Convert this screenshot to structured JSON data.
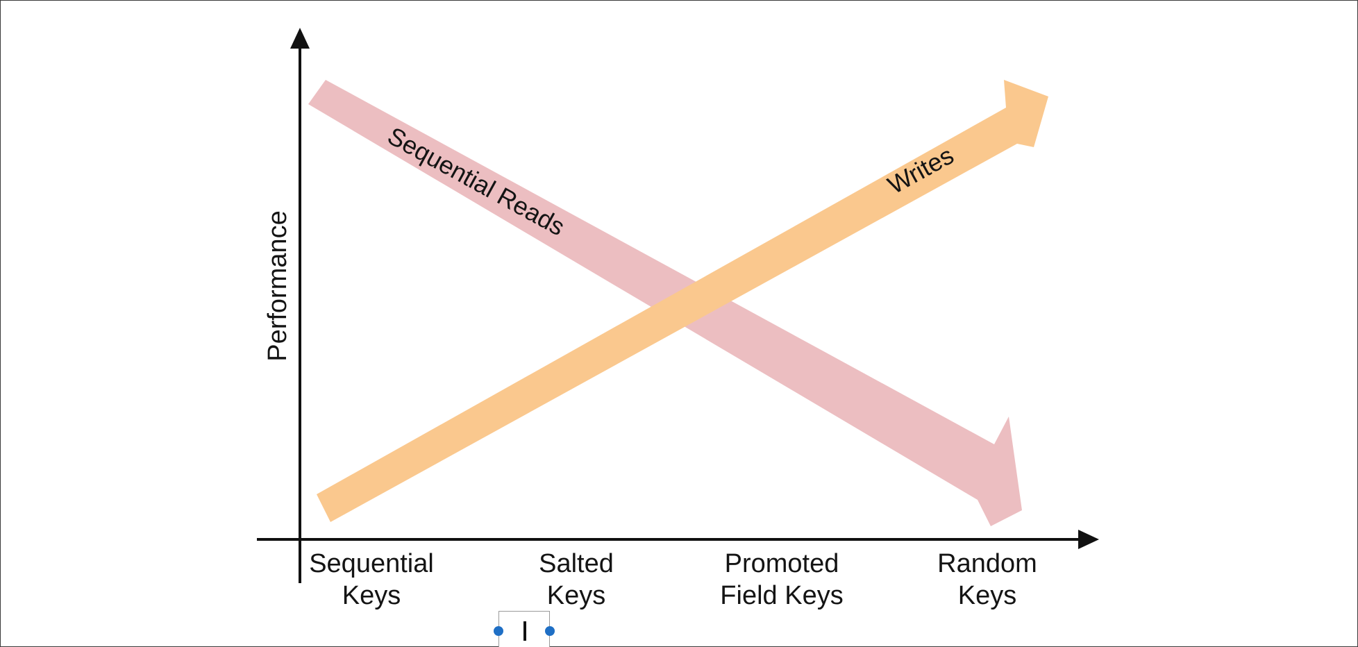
{
  "diagram": {
    "y_axis_label": "Performance",
    "x_ticks": [
      {
        "line1": "Sequential",
        "line2": "Keys"
      },
      {
        "line1": "Salted",
        "line2": "Keys"
      },
      {
        "line1": "Promoted",
        "line2": "Field Keys"
      },
      {
        "line1": "Random",
        "line2": "Keys"
      }
    ],
    "arrows": {
      "reads": {
        "label": "Sequential Reads",
        "color": "#ecbec1"
      },
      "writes": {
        "label": "Writes",
        "color": "#fac88e"
      }
    }
  }
}
